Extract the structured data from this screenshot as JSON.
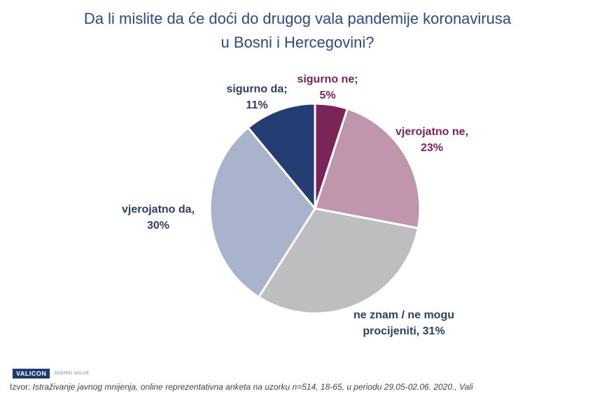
{
  "title": {
    "line1": "Da li mislite da će doći do drugog vala pandemije koronavirusa",
    "line2": "u Bosni i Hercegovini?"
  },
  "chart_data": {
    "type": "pie",
    "title": "Da li mislite da će doći do drugog vala pandemije koronavirusa u Bosni i Hercegovini?",
    "slices": [
      {
        "label": "sigurno ne;",
        "value": 5,
        "value_text": "5%",
        "color": "#7b2457",
        "text_color": "#7b2457"
      },
      {
        "label": "vjerojatno ne,",
        "value": 23,
        "value_text": "23%",
        "color": "#c096ad",
        "text_color": "#7b2457"
      },
      {
        "label": "ne znam / ne mogu",
        "label2": "procijeniti, 31%",
        "value": 31,
        "value_text": "",
        "color": "#bdbec0",
        "text_color": "#2e3f63"
      },
      {
        "label": "vjerojatno da,",
        "value": 30,
        "value_text": "30%",
        "color": "#a9b3cb",
        "text_color": "#2e3f63"
      },
      {
        "label": "sigurno da;",
        "value": 11,
        "value_text": "11%",
        "color": "#243d73",
        "text_color": "#2e3f63"
      }
    ]
  },
  "footer": {
    "logo": "VALICON",
    "tagline": "ADDING VALUE",
    "source_prefix": "Izvor: ",
    "source_text": "Istraživanje javnog mnijenja, online reprezentativna anketa na uzorku n=514, 18-65, u periodu 29.05-02.06. 2020., Vali"
  }
}
